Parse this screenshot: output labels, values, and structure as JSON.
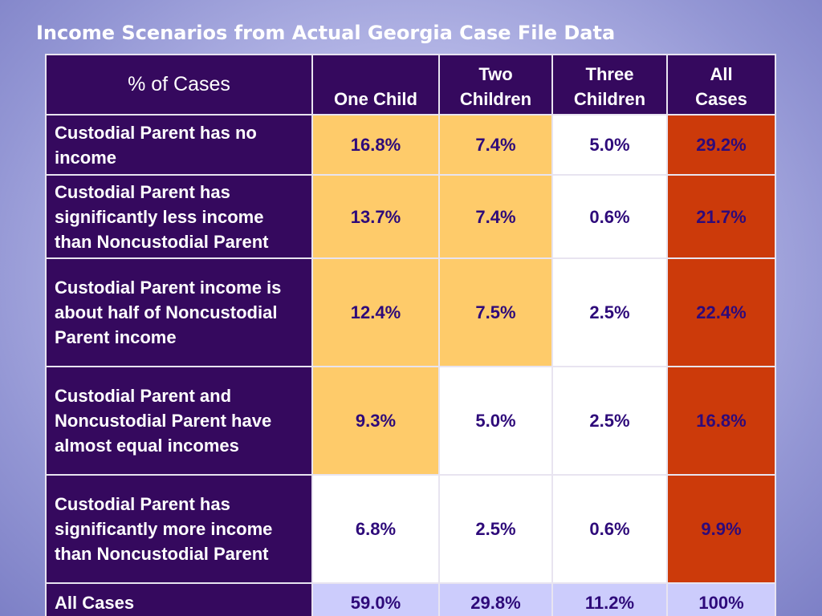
{
  "title": "Income Scenarios from Actual Georgia Case File Data",
  "table": {
    "corner_label": "% of Cases",
    "columns": [
      {
        "line1": "",
        "line2": "One Child"
      },
      {
        "line1": "Two",
        "line2": "Children"
      },
      {
        "line1": "Three",
        "line2": "Children"
      },
      {
        "line1": "All",
        "line2": "Cases"
      }
    ],
    "rows": [
      {
        "label": "Custodial Parent has no income",
        "values": [
          "16.8%",
          "7.4%",
          "5.0%",
          "29.2%"
        ],
        "fills": [
          "gold",
          "gold",
          "white",
          "red"
        ]
      },
      {
        "label": "Custodial Parent has significantly less income than Noncustodial Parent",
        "values": [
          "13.7%",
          "7.4%",
          "0.6%",
          "21.7%"
        ],
        "fills": [
          "gold",
          "gold",
          "white",
          "red"
        ]
      },
      {
        "label": "Custodial Parent income is about half of Noncustodial Parent income",
        "values": [
          "12.4%",
          "7.5%",
          "2.5%",
          "22.4%"
        ],
        "fills": [
          "gold",
          "gold",
          "white",
          "red"
        ]
      },
      {
        "label": "Custodial Parent and Noncustodial Parent have almost equal incomes",
        "values": [
          "9.3%",
          "5.0%",
          "2.5%",
          "16.8%"
        ],
        "fills": [
          "gold",
          "white",
          "white",
          "red"
        ]
      },
      {
        "label": "Custodial Parent has significantly more income than Noncustodial Parent",
        "values": [
          "6.8%",
          "2.5%",
          "0.6%",
          "9.9%"
        ],
        "fills": [
          "white",
          "white",
          "white",
          "red"
        ]
      }
    ],
    "totals": {
      "label": "All Cases",
      "values": [
        "59.0%",
        "29.8%",
        "11.2%",
        "100%"
      ],
      "fills": [
        "lav",
        "lav",
        "lav",
        "lav"
      ]
    }
  },
  "colors": {
    "header_bg": "#35095e",
    "gold": "#fecb6a",
    "red": "#cc3a0a",
    "lavender": "#ccccfc",
    "value_text": "#2e0a7a"
  }
}
